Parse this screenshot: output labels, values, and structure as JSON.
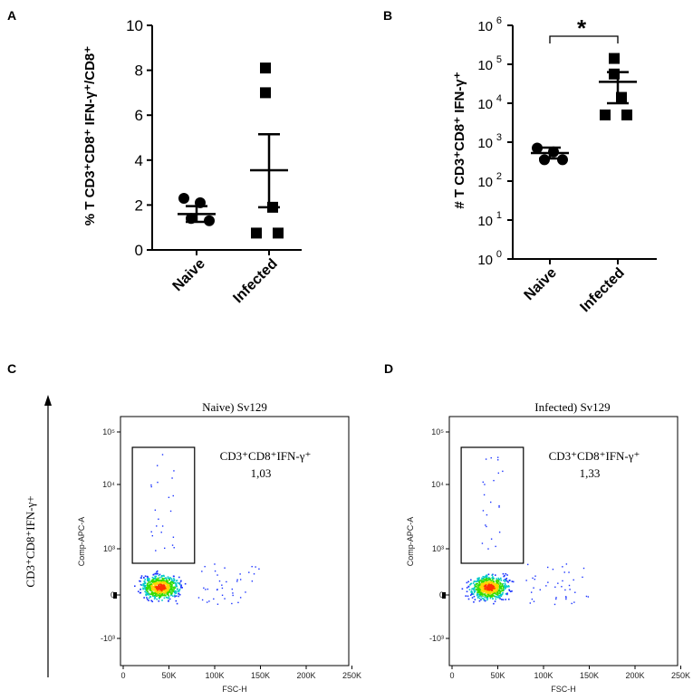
{
  "panels": {
    "A": {
      "letter": "A"
    },
    "B": {
      "letter": "B"
    },
    "C": {
      "letter": "C"
    },
    "D": {
      "letter": "D"
    }
  },
  "colors": {
    "axis": "#000000",
    "gate": "#000000",
    "dot_low": "#1a33ff",
    "dot_mid": "#00c8c8",
    "dot_high": "#33dd00",
    "dot_core": "#ffd400",
    "dot_peak": "#ff3300"
  },
  "shared_y_label": "CD3⁺CD8⁺IFN-γ+",
  "chart_data": [
    {
      "panel": "A",
      "type": "scatter",
      "ylabel": "% T CD3⁺CD8⁺ IFN-γ⁺/CD8⁺",
      "ylim": [
        0,
        10
      ],
      "yticks": [
        "0",
        "2",
        "4",
        "6",
        "8",
        "10"
      ],
      "categories": [
        "Naive",
        "Infected"
      ],
      "series": [
        {
          "name": "Naive",
          "marker": "circle",
          "points": [
            2.3,
            2.1,
            1.4,
            1.3
          ],
          "mean": 1.6,
          "sem_low": 1.25,
          "sem_high": 1.95
        },
        {
          "name": "Infected",
          "marker": "square",
          "points": [
            8.1,
            7.0,
            1.9,
            0.75,
            0.75
          ],
          "mean": 3.55,
          "sem_low": 1.9,
          "sem_high": 5.15
        }
      ]
    },
    {
      "panel": "B",
      "type": "scatter",
      "yscale": "log",
      "ylabel": "# T CD3⁺CD8⁺ IFN-γ⁺",
      "ylim_exp": [
        0,
        6
      ],
      "ytick_base": "10",
      "ytick_exponents": [
        "0",
        "1",
        "2",
        "3",
        "4",
        "5",
        "6"
      ],
      "categories": [
        "Naive",
        "Infected"
      ],
      "significance": "*",
      "series": [
        {
          "name": "Naive",
          "marker": "circle",
          "log_points": [
            2.85,
            2.75,
            2.55,
            2.55
          ],
          "log_mean": 2.72,
          "log_sem_low": 2.58,
          "log_sem_high": 2.86
        },
        {
          "name": "Infected",
          "marker": "square",
          "log_points": [
            5.15,
            4.75,
            4.15,
            3.7,
            3.7
          ],
          "log_mean": 4.55,
          "log_sem_low": 4.0,
          "log_sem_high": 4.8
        }
      ]
    },
    {
      "panel": "C",
      "type": "scatter",
      "title": "Naive) Sv129",
      "xlabel": "FSC-H",
      "ylabel": "Comp-APC-A",
      "xticks": [
        "0",
        "50K",
        "100K",
        "150K",
        "200K",
        "250K"
      ],
      "yticks": [
        "-10³",
        "0",
        "10³",
        "10⁴",
        "10⁵"
      ],
      "gate_label": "CD3⁺CD8⁺IFN-γ⁺",
      "gate_value": "1,03",
      "population_center_fsc_k": 40,
      "gate_fsc_k": [
        10,
        78
      ]
    },
    {
      "panel": "D",
      "type": "scatter",
      "title": "Infected) Sv129",
      "xlabel": "FSC-H",
      "ylabel": "Comp-APC-A",
      "xticks": [
        "0",
        "50K",
        "100K",
        "150K",
        "200K",
        "250K"
      ],
      "yticks": [
        "-10³",
        "0",
        "10³",
        "10⁴",
        "10⁵"
      ],
      "gate_label": "CD3⁺CD8⁺IFN-γ⁺",
      "gate_value": "1,33",
      "population_center_fsc_k": 40,
      "gate_fsc_k": [
        10,
        78
      ]
    }
  ]
}
